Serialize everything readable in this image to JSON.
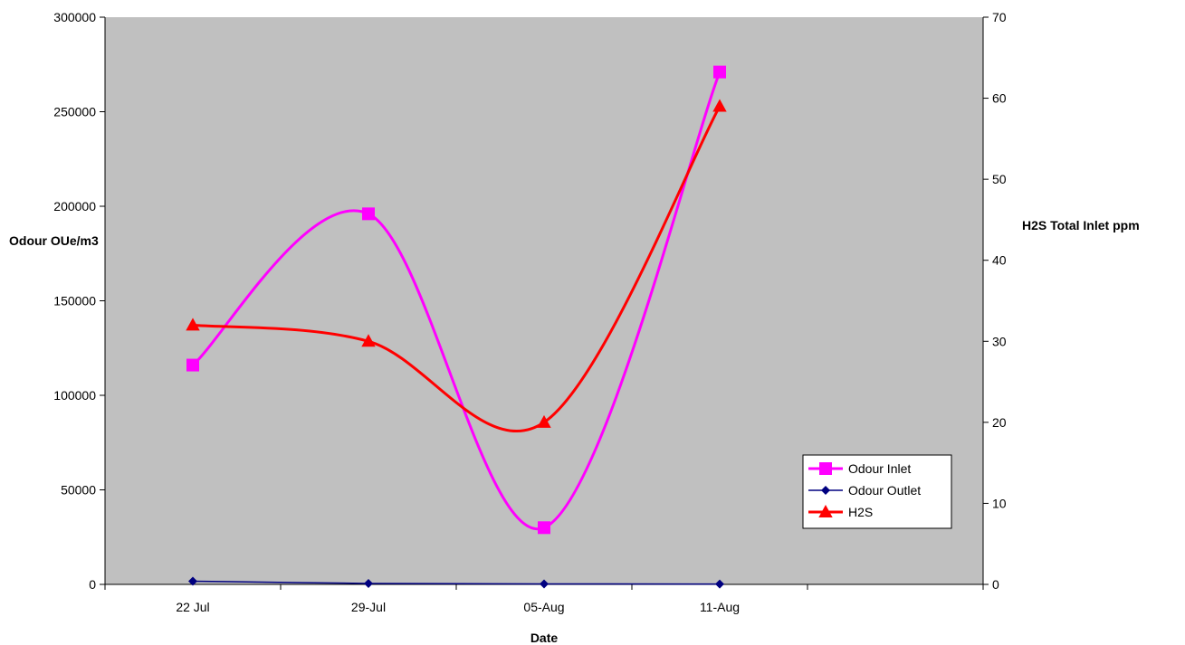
{
  "chart_data": {
    "type": "line",
    "title": "",
    "xlabel": "Date",
    "ylabel": "Odour OUe/m3",
    "y2label": "H2S Total Inlet ppm",
    "categories": [
      "22 Jul",
      "29-Jul",
      "05-Aug",
      "11-Aug"
    ],
    "x_slots": 5,
    "ylim": [
      0,
      300000
    ],
    "yticks": [
      0,
      50000,
      100000,
      150000,
      200000,
      250000,
      300000
    ],
    "y2lim": [
      0,
      70
    ],
    "y2ticks": [
      0,
      10,
      20,
      30,
      40,
      50,
      60,
      70
    ],
    "grid": false,
    "plot_background": "#c0c0c0",
    "legend_position": "bottom-right",
    "smoothed": true,
    "series": [
      {
        "name": "Odour Inlet",
        "axis": "left",
        "values": [
          116000,
          196000,
          30000,
          271000
        ],
        "color": "#ff00ff",
        "marker": "square"
      },
      {
        "name": "Odour Outlet",
        "axis": "left",
        "values": [
          1700,
          500,
          250,
          200
        ],
        "color": "#000080",
        "marker": "diamond"
      },
      {
        "name": "H2S",
        "axis": "right",
        "values": [
          32,
          30,
          20,
          59
        ],
        "color": "#ff0000",
        "marker": "triangle"
      }
    ]
  }
}
